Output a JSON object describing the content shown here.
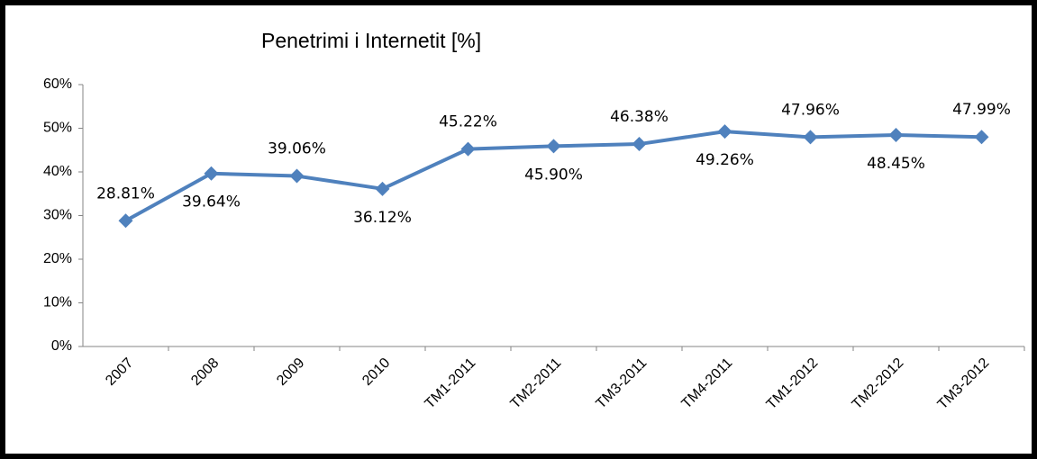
{
  "chart_data": {
    "type": "line",
    "title": "Penetrimi i Internetit [%]",
    "categories": [
      "2007",
      "2008",
      "2009",
      "2010",
      "TM1-2011",
      "TM2-2011",
      "TM3-2011",
      "TM4-2011",
      "TM1-2012",
      "TM2-2012",
      "TM3-2012"
    ],
    "values": [
      28.81,
      39.64,
      39.06,
      36.12,
      45.22,
      45.9,
      46.38,
      49.26,
      47.96,
      48.45,
      47.99
    ],
    "value_labels": [
      "28.81%",
      "39.64%",
      "39.06%",
      "36.12%",
      "45.22%",
      "45.90%",
      "46.38%",
      "49.26%",
      "47.96%",
      "48.45%",
      "47.99%"
    ],
    "color": "#4f81bd",
    "ylim": [
      0,
      60
    ],
    "yticks": [
      {
        "value": 0,
        "label": "0%"
      },
      {
        "value": 10,
        "label": "10%"
      },
      {
        "value": 20,
        "label": "20%"
      },
      {
        "value": 30,
        "label": "30%"
      },
      {
        "value": 40,
        "label": "40%"
      },
      {
        "value": 50,
        "label": "50%"
      },
      {
        "value": 60,
        "label": "60%"
      }
    ],
    "grid": false
  }
}
